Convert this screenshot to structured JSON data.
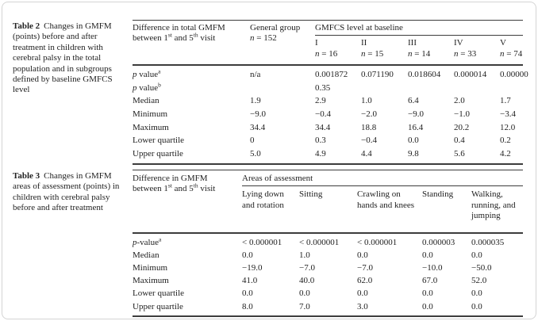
{
  "colors": {
    "text": "#222222",
    "rule": "#3c3c3c",
    "card_border": "#d4d4d4",
    "background": "#ffffff"
  },
  "table2": {
    "caption_label": "Table 2",
    "caption_text": "Changes in GMFM (points) before and after treatment in children with cerebral palsy in the total population and in subgroups defined by baseline GMFCS level",
    "header": {
      "stub_line1": "Difference in total GMFM",
      "stub2_a": "between 1",
      "stub2_sup1": "st",
      "stub2_b": " and 5",
      "stub2_sup2": "th",
      "stub2_c": " visit",
      "general_label": "General group",
      "general_n": "n = 152",
      "gmfcs_label": "GMFCS level at baseline",
      "levels": [
        {
          "label": "I",
          "n": "n = 16"
        },
        {
          "label": "II",
          "n": "n = 15"
        },
        {
          "label": "III",
          "n": "n = 14"
        },
        {
          "label": "IV",
          "n": "n = 33"
        },
        {
          "label": "V",
          "n": "n = 74"
        }
      ]
    },
    "rows": [
      {
        "label": "p value",
        "sup": "a",
        "cells": [
          "n/a",
          "0.001872",
          "0.071190",
          "0.018604",
          "0.000014",
          "0.00000"
        ]
      },
      {
        "label": "p value",
        "sup": "b",
        "cells": [
          "",
          "0.35",
          "",
          "",
          "",
          ""
        ]
      },
      {
        "label": "Median",
        "cells": [
          "1.9",
          "2.9",
          "1.0",
          "6.4",
          "2.0",
          "1.7"
        ]
      },
      {
        "label": "Minimum",
        "cells": [
          "−9.0",
          "−0.4",
          "−2.0",
          "−9.0",
          "−1.0",
          "−3.4"
        ]
      },
      {
        "label": "Maximum",
        "cells": [
          "34.4",
          "34.4",
          "18.8",
          "16.4",
          "20.2",
          "12.0"
        ]
      },
      {
        "label": "Lower quartile",
        "cells": [
          "0",
          "0.3",
          "−0.4",
          "0.0",
          "0.4",
          "0.2"
        ]
      },
      {
        "label": "Upper quartile",
        "cells": [
          "5.0",
          "4.9",
          "4.4",
          "9.8",
          "5.6",
          "4.2"
        ]
      }
    ]
  },
  "table3": {
    "caption_label": "Table 3",
    "caption_text": "Changes in GMFM areas of assessment (points) in children with cerebral palsy before and after treatment",
    "header": {
      "stub_line1": "Difference in GMFM",
      "stub2_a": "between 1",
      "stub2_sup1": "st",
      "stub2_b": " and 5",
      "stub2_sup2": "th",
      "stub2_c": " visit",
      "areas_label": "Areas of assessment",
      "areas": [
        "Lying down and rotation",
        "Sitting",
        "Crawling on hands and knees",
        "Standing",
        "Walking, running, and jumping"
      ]
    },
    "rows": [
      {
        "label": "p-value",
        "sup": "a",
        "cells": [
          "< 0.000001",
          "< 0.000001",
          "< 0.000001",
          "0.000003",
          "0.000035"
        ]
      },
      {
        "label": "Median",
        "cells": [
          "0.0",
          "1.0",
          "0.0",
          "0.0",
          "0.0"
        ]
      },
      {
        "label": "Minimum",
        "cells": [
          "−19.0",
          "−7.0",
          "−7.0",
          "−10.0",
          "−50.0"
        ]
      },
      {
        "label": "Maximum",
        "cells": [
          "41.0",
          "40.0",
          "62.0",
          "67.0",
          "52.0"
        ]
      },
      {
        "label": "Lower quartile",
        "cells": [
          "0.0",
          "0.0",
          "0.0",
          "0.0",
          "0.0"
        ]
      },
      {
        "label": "Upper quartile",
        "cells": [
          "8.0",
          "7.0",
          "3.0",
          "0.0",
          "0.0"
        ]
      }
    ]
  }
}
